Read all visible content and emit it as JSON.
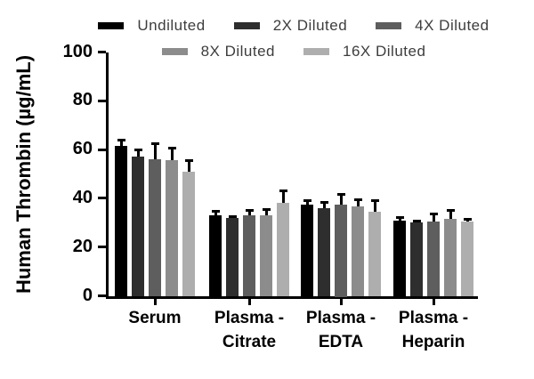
{
  "figure": {
    "background": "#ffffff",
    "description": "Grouped bar chart with SD error bars showing spike recovery of Human Thrombin in serum and plasma at serial dilutions"
  },
  "chart_data": {
    "type": "bar",
    "title": "",
    "ylabel": "Human Thrombin (µg/mL)",
    "xlabel": "",
    "ylim": [
      0,
      100
    ],
    "yticks": [
      0,
      20,
      40,
      60,
      80,
      100
    ],
    "grid": false,
    "legend_position": "top",
    "legend_rows": [
      [
        "Undiluted",
        "2X Diluted",
        "4X Diluted"
      ],
      [
        "8X Diluted",
        "16X Diluted"
      ]
    ],
    "categories": [
      "Serum",
      "Plasma -\nCitrate",
      "Plasma -\nEDTA",
      "Plasma -\nHeparin"
    ],
    "series": [
      {
        "name": "Undiluted",
        "color": "#000000",
        "values": [
          61.5,
          33.0,
          37.5,
          31.0
        ],
        "errors": [
          2.5,
          1.5,
          1.5,
          1.0
        ]
      },
      {
        "name": "2X Diluted",
        "color": "#2e2e2e",
        "values": [
          57.0,
          32.0,
          36.0,
          30.0
        ],
        "errors": [
          3.0,
          0.5,
          2.5,
          0.5
        ]
      },
      {
        "name": "4X Diluted",
        "color": "#5e5e5e",
        "values": [
          56.0,
          33.0,
          37.5,
          30.5
        ],
        "errors": [
          6.5,
          2.0,
          4.0,
          3.0
        ]
      },
      {
        "name": "8X Diluted",
        "color": "#8c8c8c",
        "values": [
          55.5,
          33.0,
          36.5,
          31.5
        ],
        "errors": [
          5.0,
          2.5,
          3.0,
          3.5
        ]
      },
      {
        "name": "16X Diluted",
        "color": "#aeaeae",
        "values": [
          51.0,
          38.0,
          34.5,
          30.5
        ],
        "errors": [
          4.5,
          5.0,
          4.5,
          1.0
        ]
      }
    ],
    "error_bar_color": "#000000",
    "axis_color": "#000000"
  }
}
